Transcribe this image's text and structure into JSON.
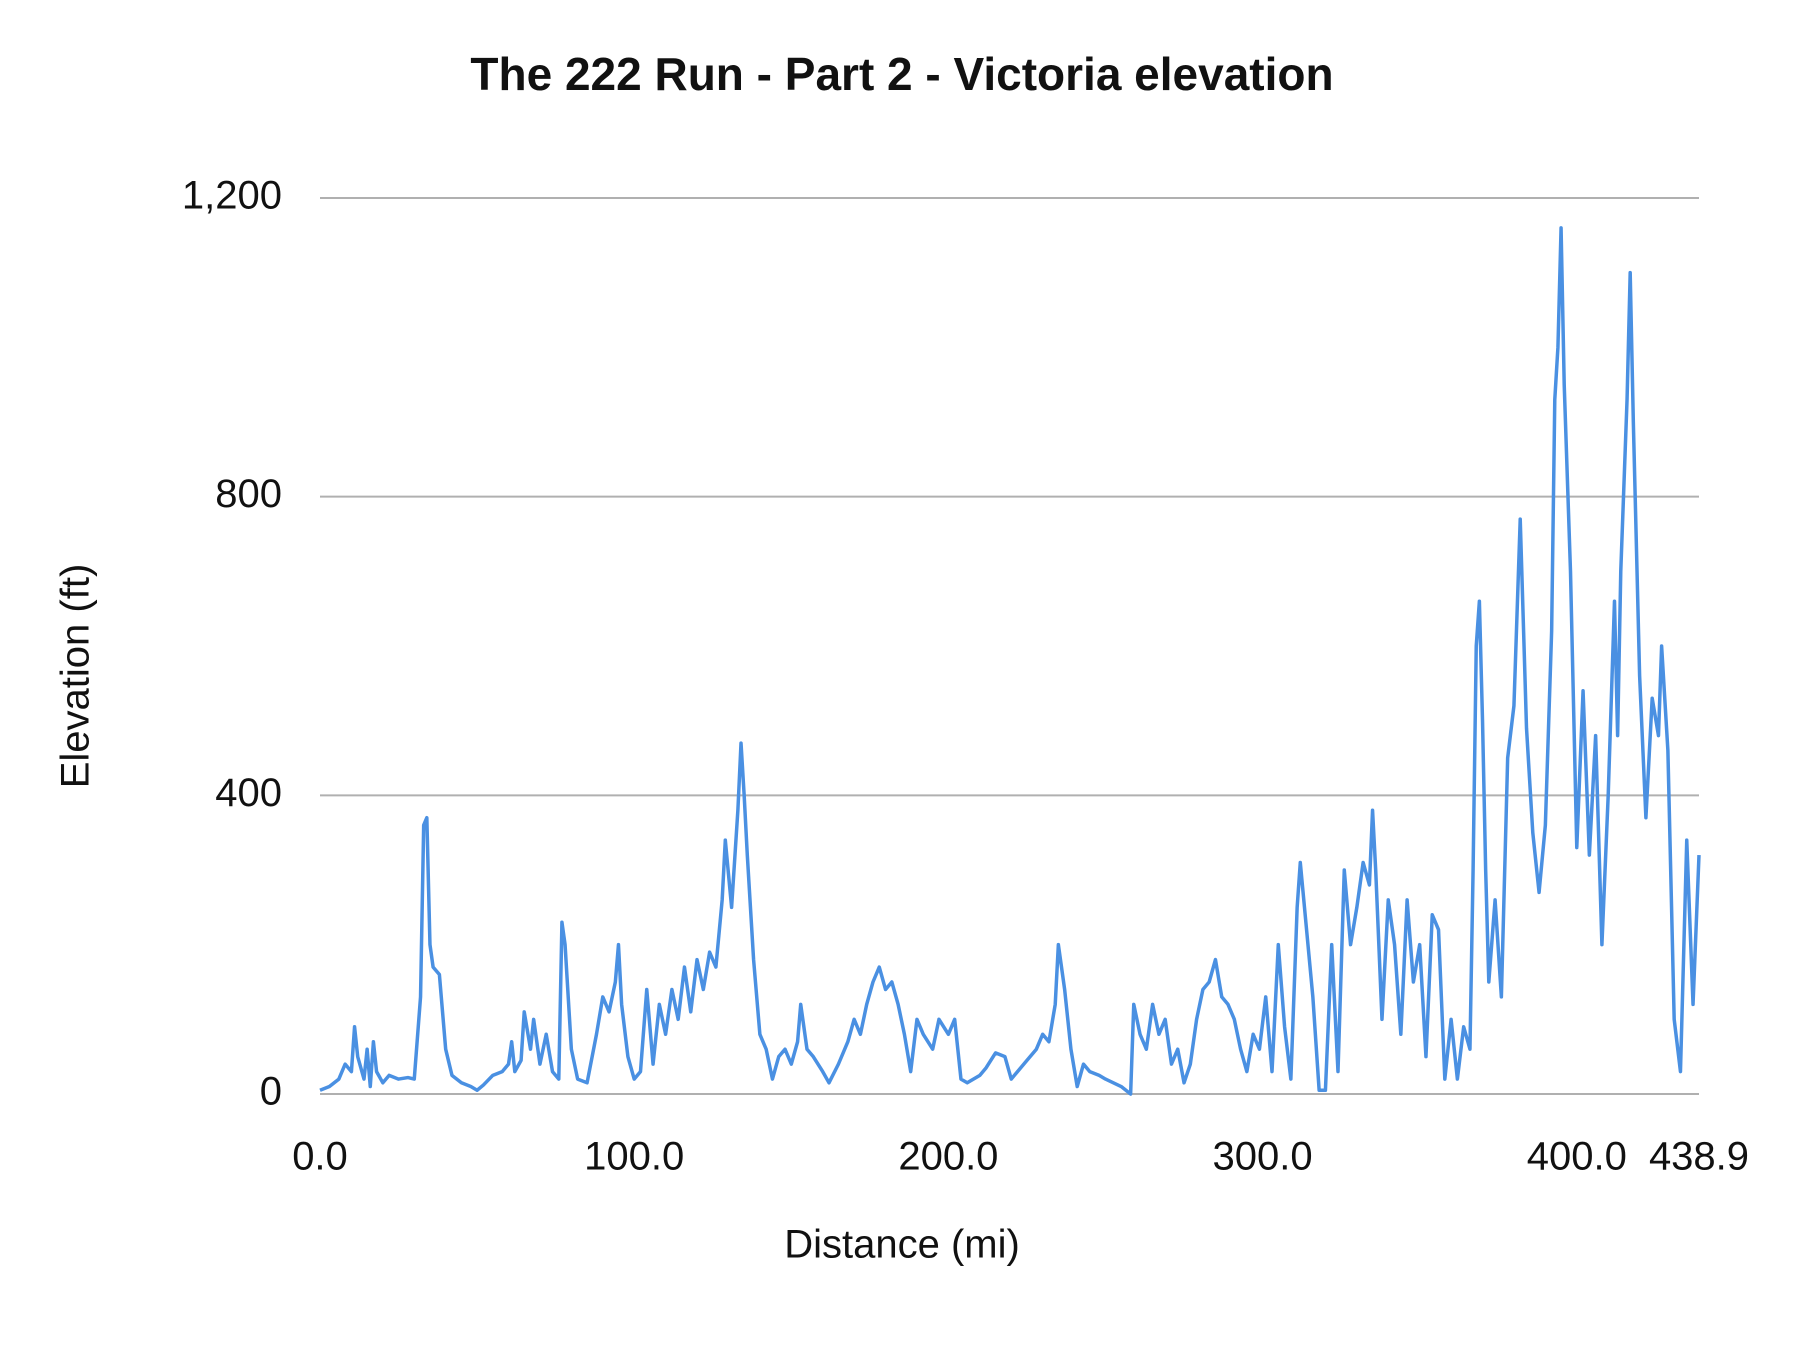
{
  "chart_data": {
    "type": "line",
    "title": "The 222 Run - Part 2 - Victoria elevation",
    "x_label": "Distance (mi)",
    "y_label": "Elevation (ft)",
    "xlim": [
      0,
      438.9
    ],
    "ylim": [
      0,
      1200
    ],
    "xticks": [
      {
        "value": 0,
        "label": "0.0"
      },
      {
        "value": 100,
        "label": "100.0"
      },
      {
        "value": 200,
        "label": "200.0"
      },
      {
        "value": 300,
        "label": "300.0"
      },
      {
        "value": 400,
        "label": "400.0"
      },
      {
        "value": 438.9,
        "label": "438.9"
      }
    ],
    "yticks": [
      0,
      400,
      800,
      {
        "value": 1200,
        "label": "1,200"
      }
    ],
    "grid": true,
    "x": [
      0,
      3,
      6,
      8,
      10,
      11,
      12,
      14,
      15,
      16,
      17,
      18,
      20,
      22,
      25,
      28,
      30,
      32,
      33,
      34,
      35,
      36,
      38,
      40,
      42,
      45,
      48,
      50,
      52,
      55,
      58,
      60,
      61,
      62,
      64,
      65,
      67,
      68,
      70,
      72,
      74,
      76,
      77,
      78,
      80,
      82,
      85,
      88,
      90,
      92,
      94,
      95,
      96,
      98,
      100,
      102,
      104,
      106,
      108,
      110,
      112,
      114,
      116,
      118,
      120,
      122,
      124,
      126,
      128,
      129,
      131,
      133,
      134,
      135,
      136,
      138,
      140,
      142,
      144,
      146,
      148,
      150,
      152,
      153,
      155,
      157,
      160,
      162,
      165,
      168,
      170,
      172,
      174,
      176,
      178,
      180,
      182,
      184,
      186,
      188,
      190,
      192,
      195,
      197,
      200,
      202,
      204,
      206,
      210,
      212,
      215,
      218,
      220,
      222,
      225,
      228,
      230,
      232,
      234,
      235,
      237,
      239,
      241,
      243,
      245,
      248,
      250,
      255,
      258,
      259,
      261,
      263,
      265,
      267,
      269,
      271,
      273,
      275,
      277,
      279,
      281,
      283,
      285,
      287,
      289,
      291,
      293,
      295,
      297,
      299,
      301,
      303,
      305,
      307,
      309,
      311,
      312,
      314,
      316,
      318,
      320,
      322,
      324,
      326,
      328,
      330,
      332,
      334,
      335,
      336,
      338,
      340,
      342,
      344,
      346,
      348,
      350,
      352,
      354,
      356,
      358,
      360,
      362,
      364,
      366,
      367,
      368,
      369,
      370,
      371,
      372,
      374,
      376,
      378,
      380,
      382,
      384,
      386,
      388,
      390,
      392,
      393,
      394,
      395,
      396,
      398,
      400,
      402,
      404,
      406,
      408,
      410,
      412,
      413,
      414,
      416,
      417,
      418,
      420,
      422,
      424,
      426,
      427,
      429,
      431,
      433,
      435,
      437,
      438.9
    ],
    "series": [
      {
        "name": "Elevation",
        "color": "#4a90e2",
        "values": [
          5,
          10,
          20,
          40,
          30,
          90,
          50,
          20,
          60,
          10,
          70,
          30,
          15,
          25,
          20,
          22,
          20,
          130,
          360,
          370,
          200,
          170,
          160,
          60,
          25,
          15,
          10,
          5,
          12,
          25,
          30,
          40,
          70,
          30,
          45,
          110,
          60,
          100,
          40,
          80,
          30,
          20,
          230,
          200,
          60,
          20,
          15,
          80,
          130,
          110,
          150,
          200,
          120,
          50,
          20,
          30,
          140,
          40,
          120,
          80,
          140,
          100,
          170,
          110,
          180,
          140,
          190,
          170,
          260,
          340,
          250,
          380,
          470,
          400,
          320,
          180,
          80,
          60,
          20,
          50,
          60,
          40,
          70,
          120,
          60,
          50,
          30,
          15,
          40,
          70,
          100,
          80,
          120,
          150,
          170,
          140,
          150,
          120,
          80,
          30,
          100,
          80,
          60,
          100,
          80,
          100,
          20,
          15,
          25,
          35,
          55,
          50,
          20,
          30,
          45,
          60,
          80,
          70,
          120,
          200,
          140,
          60,
          10,
          40,
          30,
          25,
          20,
          10,
          0,
          120,
          80,
          60,
          120,
          80,
          100,
          40,
          60,
          15,
          40,
          100,
          140,
          150,
          180,
          130,
          120,
          100,
          60,
          30,
          80,
          60,
          130,
          30,
          200,
          90,
          20,
          250,
          310,
          220,
          130,
          5,
          5,
          200,
          30,
          300,
          200,
          250,
          310,
          280,
          380,
          300,
          100,
          260,
          200,
          80,
          260,
          150,
          200,
          50,
          240,
          220,
          20,
          100,
          20,
          90,
          60,
          300,
          600,
          660,
          500,
          300,
          150,
          260,
          130,
          450,
          520,
          770,
          490,
          350,
          270,
          360,
          620,
          930,
          1000,
          1160,
          950,
          700,
          330,
          540,
          320,
          480,
          200,
          400,
          660,
          480,
          700,
          930,
          1100,
          900,
          560,
          370,
          530,
          480,
          600,
          460,
          100,
          30,
          340,
          120,
          320
        ]
      }
    ]
  }
}
